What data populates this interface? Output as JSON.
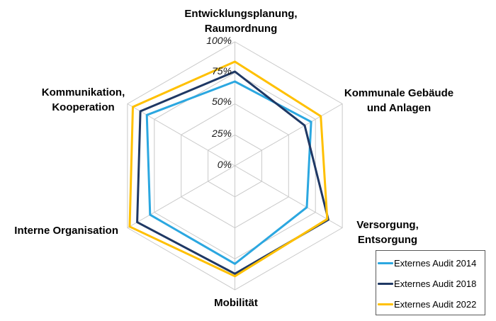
{
  "chart_data": {
    "type": "radar",
    "categories": [
      "Entwicklungsplanung, Raumordnung",
      "Kommunale Gebäude und Anlagen",
      "Versorgung, Entsorgung",
      "Mobilität",
      "Interne Organisation",
      "Kommunikation, Kooperation"
    ],
    "axis_labels": [
      {
        "lines": [
          "Entwicklungsplanung,",
          "Raumordnung"
        ]
      },
      {
        "lines": [
          "Kommunale Gebäude",
          "und Anlagen"
        ]
      },
      {
        "lines": [
          "Versorgung,",
          "Entsorgung"
        ]
      },
      {
        "lines": [
          "Mobilität"
        ]
      },
      {
        "lines": [
          "Interne Organisation"
        ]
      },
      {
        "lines": [
          "Kommunikation,",
          "Kooperation"
        ]
      }
    ],
    "series": [
      {
        "name": "Externes Audit 2014",
        "color": "#2BA7E0",
        "values": [
          68,
          71,
          67,
          79,
          79,
          82
        ]
      },
      {
        "name": "Externes Audit 2018",
        "color": "#1F3864",
        "values": [
          76,
          65,
          87,
          87,
          91,
          88
        ]
      },
      {
        "name": "Externes Audit 2022",
        "color": "#FFC000",
        "values": [
          84,
          80,
          86,
          89,
          98,
          95
        ]
      }
    ],
    "rlim": [
      0,
      100
    ],
    "rings_percent": [
      25,
      50,
      75,
      100
    ],
    "tick_labels": [
      "100%",
      "75%",
      "50%",
      "25%",
      "0%"
    ],
    "grid": true,
    "grid_color": "#C9C9C9",
    "legend_position": "bottom-right"
  }
}
